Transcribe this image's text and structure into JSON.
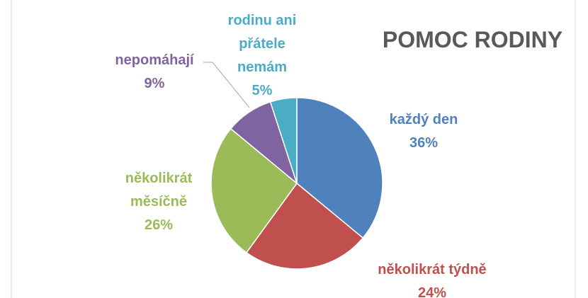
{
  "chart_data": {
    "type": "pie",
    "title": "POMOC RODINY",
    "categories": [
      "každý den",
      "několikrát týdně",
      "několikrát měsíčně",
      "nepomáhají",
      "rodinu ani přátele nemám"
    ],
    "values": [
      36,
      24,
      26,
      9,
      5
    ],
    "value_labels": [
      "36%",
      "24%",
      "26%",
      "9%",
      "5%"
    ],
    "colors": [
      "#4f81bd",
      "#c0504d",
      "#9bbb59",
      "#8064a2",
      "#4bacc6"
    ]
  }
}
